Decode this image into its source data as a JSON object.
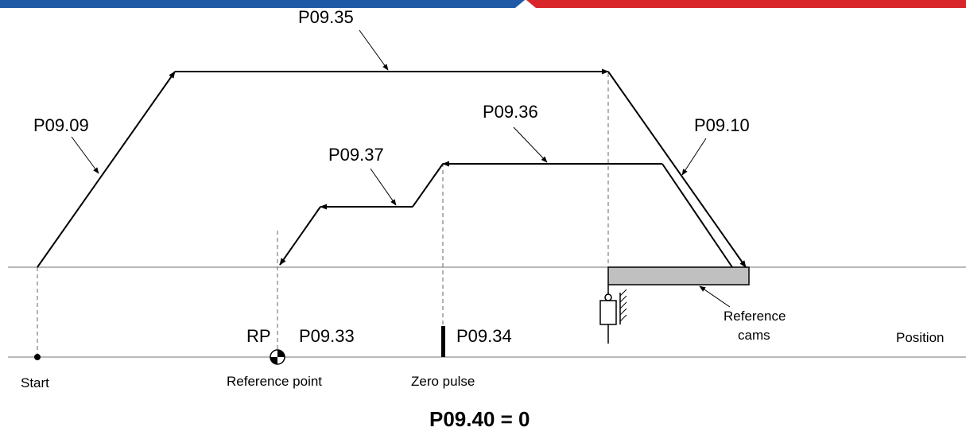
{
  "header_bar": {
    "left_color": "#1f5aa6",
    "right_color": "#d8262b"
  },
  "parameters": {
    "p0935": "P09.35",
    "p0909": "P09.09",
    "p0936": "P09.36",
    "p0910": "P09.10",
    "p0937": "P09.37",
    "p0933": "P09.33",
    "p0934": "P09.34"
  },
  "labels": {
    "rp": "RP",
    "reference_cams_line1": "Reference",
    "reference_cams_line2": "cams",
    "position": "Position",
    "start": "Start",
    "reference_point": "Reference point",
    "zero_pulse": "Zero pulse"
  },
  "formula": "P09.40 = 0",
  "colors": {
    "cam_fill": "#c0c0c0",
    "axis_line": "#a0a0a0"
  }
}
